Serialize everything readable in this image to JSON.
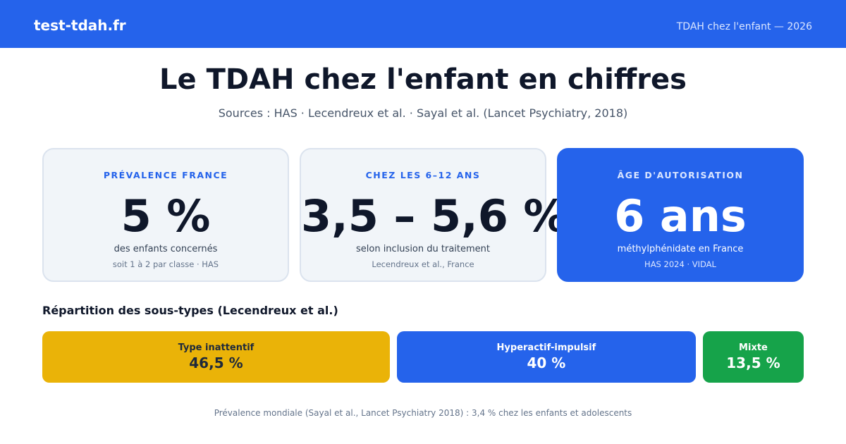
{
  "header": {
    "brand": "test-tdah.fr",
    "tagline": "TDAH chez l'enfant — 2026"
  },
  "title": "Le TDAH chez l'enfant en chiffres",
  "subtitle": "Sources : HAS · Lecendreux et al. · Sayal et al. (Lancet Psychiatry, 2018)",
  "cards": [
    {
      "label": "PRÉVALENCE FRANCE",
      "value": "5 %",
      "description": "des enfants concernés",
      "source": "soit 1 à 2 par classe · HAS"
    },
    {
      "label": "CHEZ LES 6–12 ANS",
      "value": "3,5 – 5,6 %",
      "description": "selon inclusion du traitement",
      "source": "Lecendreux et al., France"
    },
    {
      "label": "ÂGE D'AUTORISATION",
      "value": "6 ans",
      "description": "méthylphénidate en France",
      "source": "HAS 2024 · VIDAL"
    }
  ],
  "subtypes": {
    "title": "Répartition des sous-types (Lecendreux et al.)",
    "items": [
      {
        "name": "Type inattentif",
        "value": 46.5,
        "value_label": "46,5 %",
        "color": "#eab308",
        "text_color": "#1e293b"
      },
      {
        "name": "Hyperactif-impulsif",
        "value": 40,
        "value_label": "40 %",
        "color": "#2563eb",
        "text_color": "#ffffff"
      },
      {
        "name": "Mixte",
        "value": 13.5,
        "value_label": "13,5 %",
        "color": "#16a34a",
        "text_color": "#ffffff"
      }
    ]
  },
  "footer": "Prévalence mondiale (Sayal et al., Lancet Psychiatry 2018) : 3,4 % chez les enfants et adolescents"
}
